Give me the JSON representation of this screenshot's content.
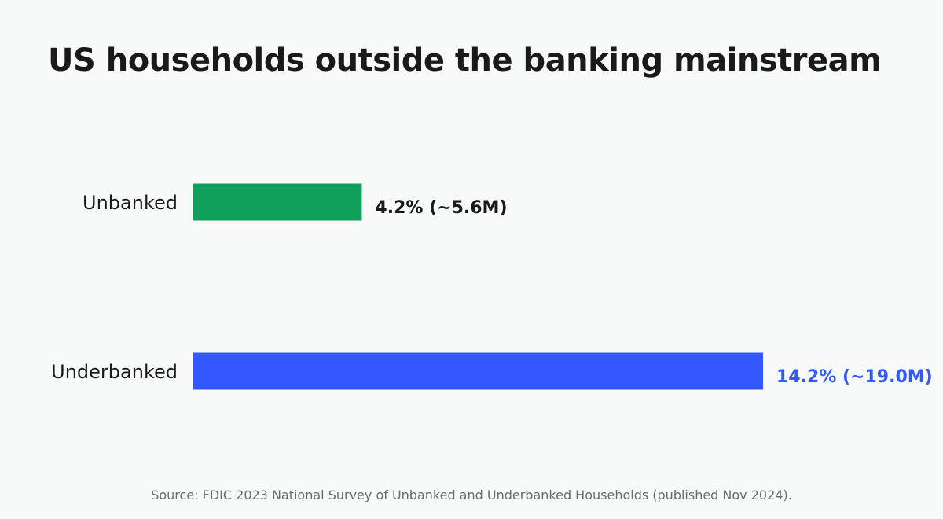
{
  "title": "US households outside the banking mainstream",
  "source": "Source: FDIC 2023 National Survey of Unbanked and Underbanked Households (published Nov 2024).",
  "chart_data": {
    "type": "bar",
    "orientation": "horizontal",
    "title": "US households outside the banking mainstream",
    "categories": [
      "Unbanked",
      "Underbanked"
    ],
    "values": [
      4.2,
      14.2
    ],
    "data_labels": [
      "4.2%  (~5.6M)",
      "14.2%  (~19.0M)"
    ],
    "colors": [
      "#11a05c",
      "#3358ff"
    ],
    "label_colors": [
      "#1a1a1a",
      "#3358ff"
    ],
    "unit": "%",
    "grid": false,
    "legend": "none"
  }
}
